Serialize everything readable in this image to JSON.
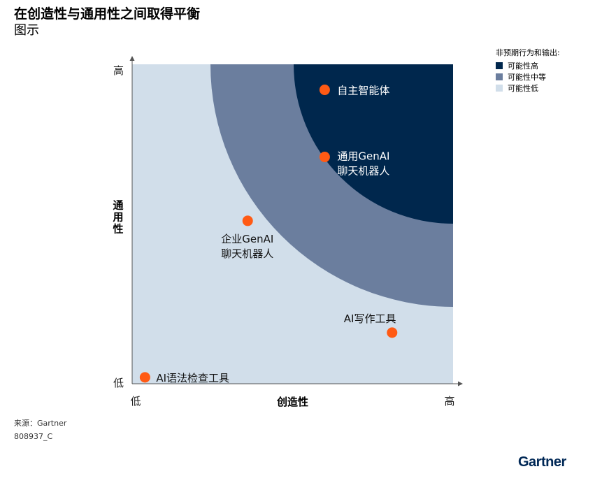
{
  "title": "在创造性与通用性之间取得平衡",
  "subtitle": "图示",
  "legend": {
    "title": "非预期行为和输出:",
    "items": [
      {
        "label": "可能性高",
        "color": "#00274D"
      },
      {
        "label": "可能性中等",
        "color": "#6B7E9E"
      },
      {
        "label": "可能性低",
        "color": "#D1DEEA"
      }
    ]
  },
  "chart_data": {
    "type": "scatter",
    "title": "在创造性与通用性之间取得平衡",
    "xlabel": "创造性",
    "ylabel": "通用性",
    "x_ticks": [
      "低",
      "高"
    ],
    "y_ticks": [
      "低",
      "高"
    ],
    "xlim": [
      0,
      1
    ],
    "ylim": [
      0,
      1
    ],
    "point_color": "#FF5A14",
    "zones": [
      {
        "label": "可能性低",
        "color": "#D1DEEA"
      },
      {
        "label": "可能性中等",
        "color": "#6B7E9E"
      },
      {
        "label": "可能性高",
        "color": "#00274D"
      }
    ],
    "points": [
      {
        "name": "自主智能体",
        "x": 0.6,
        "y": 0.92
      },
      {
        "name": "通用GenAI聊天机器人",
        "x": 0.6,
        "y": 0.71
      },
      {
        "name": "企业GenAI聊天机器人",
        "x": 0.36,
        "y": 0.51
      },
      {
        "name": "AI写作工具",
        "x": 0.81,
        "y": 0.16
      },
      {
        "name": "AI语法检查工具",
        "x": 0.04,
        "y": 0.02
      }
    ]
  },
  "footer": {
    "source": "来源：Gartner",
    "code": "808937_C",
    "brand": "Gartner"
  }
}
